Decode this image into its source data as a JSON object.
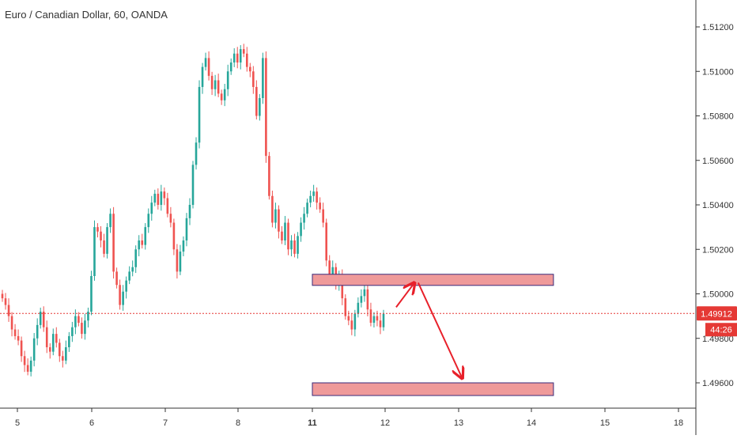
{
  "header": {
    "symbol_title": "Euro / Canadian Dollar, 60, OANDA"
  },
  "price_axis": {
    "ticks": [
      "1.51200",
      "1.51000",
      "1.50800",
      "1.50600",
      "1.50400",
      "1.50200",
      "1.50000",
      "1.49800",
      "1.49600"
    ],
    "current_price_label": "1.49912",
    "countdown_label": "44:26"
  },
  "time_axis": {
    "ticks": [
      "5",
      "6",
      "7",
      "8",
      "11",
      "12",
      "13",
      "14",
      "15",
      "18"
    ]
  },
  "colors": {
    "up": "#26a69a",
    "down": "#ef5350",
    "zone_fill": "#ef9a9a",
    "zone_border": "#3a2a7a",
    "arrow": "#e8202a",
    "price_line": "#e53935"
  },
  "chart_data": {
    "type": "candlestick",
    "title": "Euro / Canadian Dollar, 60, OANDA",
    "xlabel": "",
    "ylabel": "",
    "x_ticks": [
      "5",
      "6",
      "7",
      "8",
      "11",
      "12",
      "13",
      "14",
      "15",
      "18"
    ],
    "ylim": [
      1.495,
      1.5135
    ],
    "y_ticks": [
      1.512,
      1.51,
      1.508,
      1.506,
      1.504,
      1.502,
      1.5,
      1.498,
      1.496
    ],
    "grid": false,
    "current_price": 1.49912,
    "series": [
      {
        "closes": [
          1.4998,
          1.4995,
          1.499,
          1.4984,
          1.4981,
          1.4979,
          1.4972,
          1.4968,
          1.4965,
          1.497,
          1.498,
          1.4986,
          1.4992,
          1.4985,
          1.4976,
          1.4974,
          1.4982,
          1.4978,
          1.4972,
          1.497,
          1.4976,
          1.4981,
          1.4985,
          1.499,
          1.4987,
          1.4982,
          1.4988,
          1.4992,
          1.5008,
          1.503,
          1.5028,
          1.5024,
          1.5018,
          1.503,
          1.5036,
          1.501,
          1.5004,
          1.4995,
          1.5001,
          1.5006,
          1.501,
          1.5012,
          1.502,
          1.5024,
          1.5022,
          1.503,
          1.5036,
          1.5041,
          1.5045,
          1.504,
          1.5046,
          1.5043,
          1.5036,
          1.5032,
          1.502,
          1.501,
          1.5019,
          1.5024,
          1.5034,
          1.504,
          1.5058,
          1.5068,
          1.5093,
          1.5102,
          1.5106,
          1.5098,
          1.5092,
          1.5096,
          1.509,
          1.5087,
          1.5092,
          1.51,
          1.5104,
          1.5108,
          1.5104,
          1.511,
          1.5108,
          1.5102,
          1.51,
          1.5093,
          1.508,
          1.5088,
          1.5106,
          1.5062,
          1.5044,
          1.5032,
          1.5038,
          1.5028,
          1.5024,
          1.5032,
          1.502,
          1.5024,
          1.5018,
          1.5026,
          1.5032,
          1.5036,
          1.5041,
          1.5044,
          1.5046,
          1.5041,
          1.5038,
          1.5032,
          1.5015,
          1.5007,
          1.5012,
          1.5004,
          1.5008,
          1.4998,
          1.499,
          1.4988,
          1.4984,
          1.4991,
          1.4996,
          1.4999,
          1.5002,
          1.4993,
          1.4987,
          1.499,
          1.4988,
          1.4985,
          1.4991
        ],
        "opens_first": 1.5
      }
    ],
    "annotations": [
      {
        "type": "zone",
        "x_from": "11",
        "x_to": "14.3",
        "y_low": 1.50038,
        "y_high": 1.50088
      },
      {
        "type": "zone",
        "x_from": "11",
        "x_to": "14.3",
        "y_low": 1.49543,
        "y_high": 1.496
      },
      {
        "type": "arrow",
        "from": [
          12.15,
          1.4994
        ],
        "to": [
          12.4,
          1.5005
        ]
      },
      {
        "type": "arrow",
        "from": [
          12.45,
          1.5005
        ],
        "to": [
          13.05,
          1.4962
        ]
      }
    ]
  }
}
